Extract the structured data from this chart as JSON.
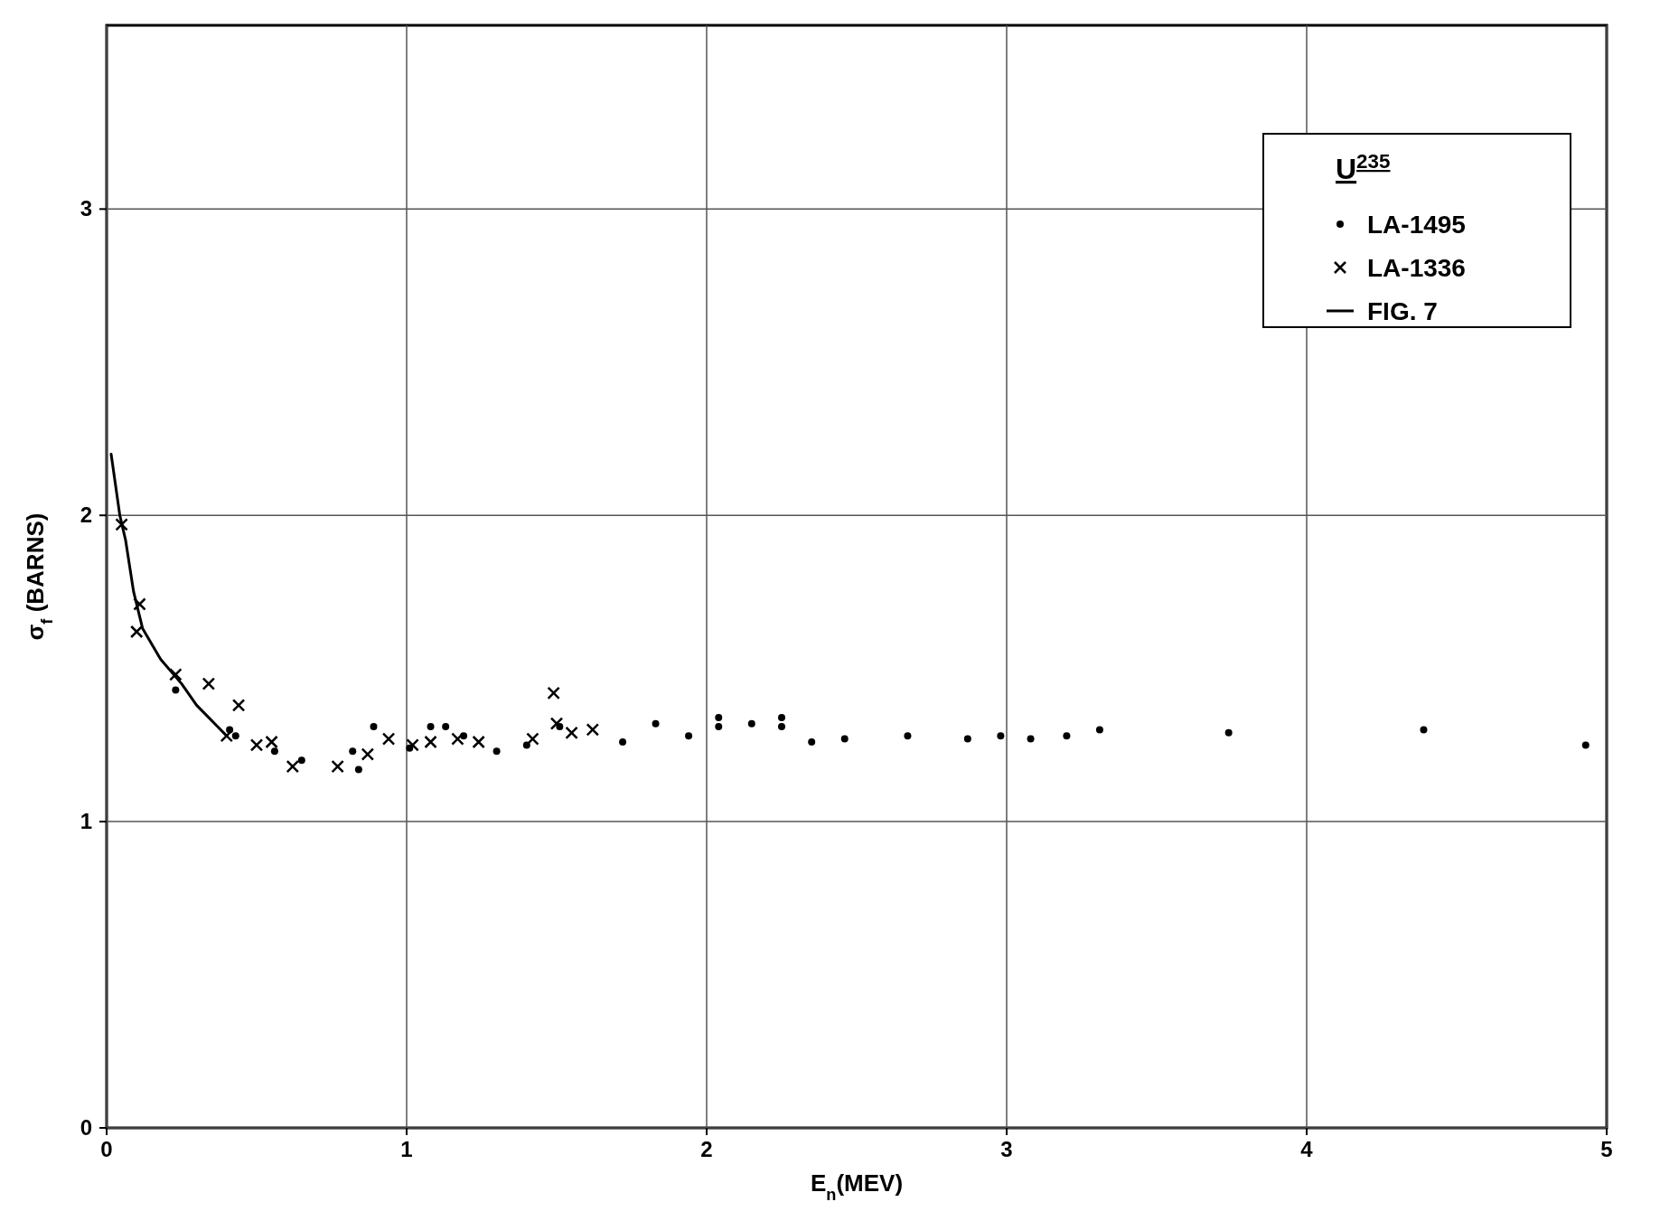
{
  "chart_data": {
    "type": "scatter",
    "xlabel": "E$_{n}$(MEV)",
    "ylabel": "σ$_{f}$ (BARNS)",
    "legend_title": "U$^{235}$",
    "legend": "top right",
    "grid": true,
    "xlim": [
      0,
      5
    ],
    "ylim": [
      0,
      3.6
    ],
    "xticks": [
      0,
      1,
      2,
      3,
      4,
      5
    ],
    "yticks": [
      0,
      1,
      2,
      3
    ],
    "series": [
      {
        "name": "LA-1495",
        "marker": "circle",
        "color": "#000000",
        "x": [
          0.23,
          0.41,
          0.43,
          0.56,
          0.65,
          0.82,
          0.84,
          0.89,
          1.01,
          1.08,
          1.13,
          1.19,
          1.3,
          1.4,
          1.51,
          1.72,
          1.83,
          1.94,
          2.04,
          2.04,
          2.15,
          2.25,
          2.25,
          2.35,
          2.46,
          2.67,
          2.87,
          2.98,
          3.08,
          3.2,
          3.31,
          3.74,
          4.39,
          4.93
        ],
        "values": [
          1.43,
          1.3,
          1.28,
          1.23,
          1.2,
          1.23,
          1.17,
          1.31,
          1.24,
          1.31,
          1.31,
          1.28,
          1.23,
          1.25,
          1.31,
          1.26,
          1.32,
          1.28,
          1.34,
          1.31,
          1.32,
          1.34,
          1.31,
          1.26,
          1.27,
          1.28,
          1.27,
          1.28,
          1.27,
          1.28,
          1.3,
          1.29,
          1.3,
          1.25
        ]
      },
      {
        "name": "LA-1336",
        "marker": "cross",
        "color": "#000000",
        "x": [
          0.05,
          0.1,
          0.11,
          0.23,
          0.34,
          0.4,
          0.44,
          0.5,
          0.55,
          0.62,
          0.77,
          0.87,
          0.94,
          1.02,
          1.08,
          1.17,
          1.24,
          1.42,
          1.49,
          1.5,
          1.55,
          1.62
        ],
        "values": [
          1.97,
          1.62,
          1.71,
          1.48,
          1.45,
          1.28,
          1.38,
          1.25,
          1.26,
          1.18,
          1.18,
          1.22,
          1.27,
          1.25,
          1.26,
          1.27,
          1.26,
          1.27,
          1.42,
          1.32,
          1.29,
          1.3
        ]
      },
      {
        "name": "FIG. 7",
        "type": "line",
        "marker": "none",
        "line_style": "solid",
        "color": "#000000",
        "x": [
          0.015,
          0.044,
          0.063,
          0.09,
          0.12,
          0.18,
          0.25,
          0.3,
          0.37,
          0.4
        ],
        "values": [
          2.2,
          2.0,
          1.92,
          1.75,
          1.63,
          1.53,
          1.45,
          1.38,
          1.31,
          1.28
        ]
      }
    ]
  }
}
